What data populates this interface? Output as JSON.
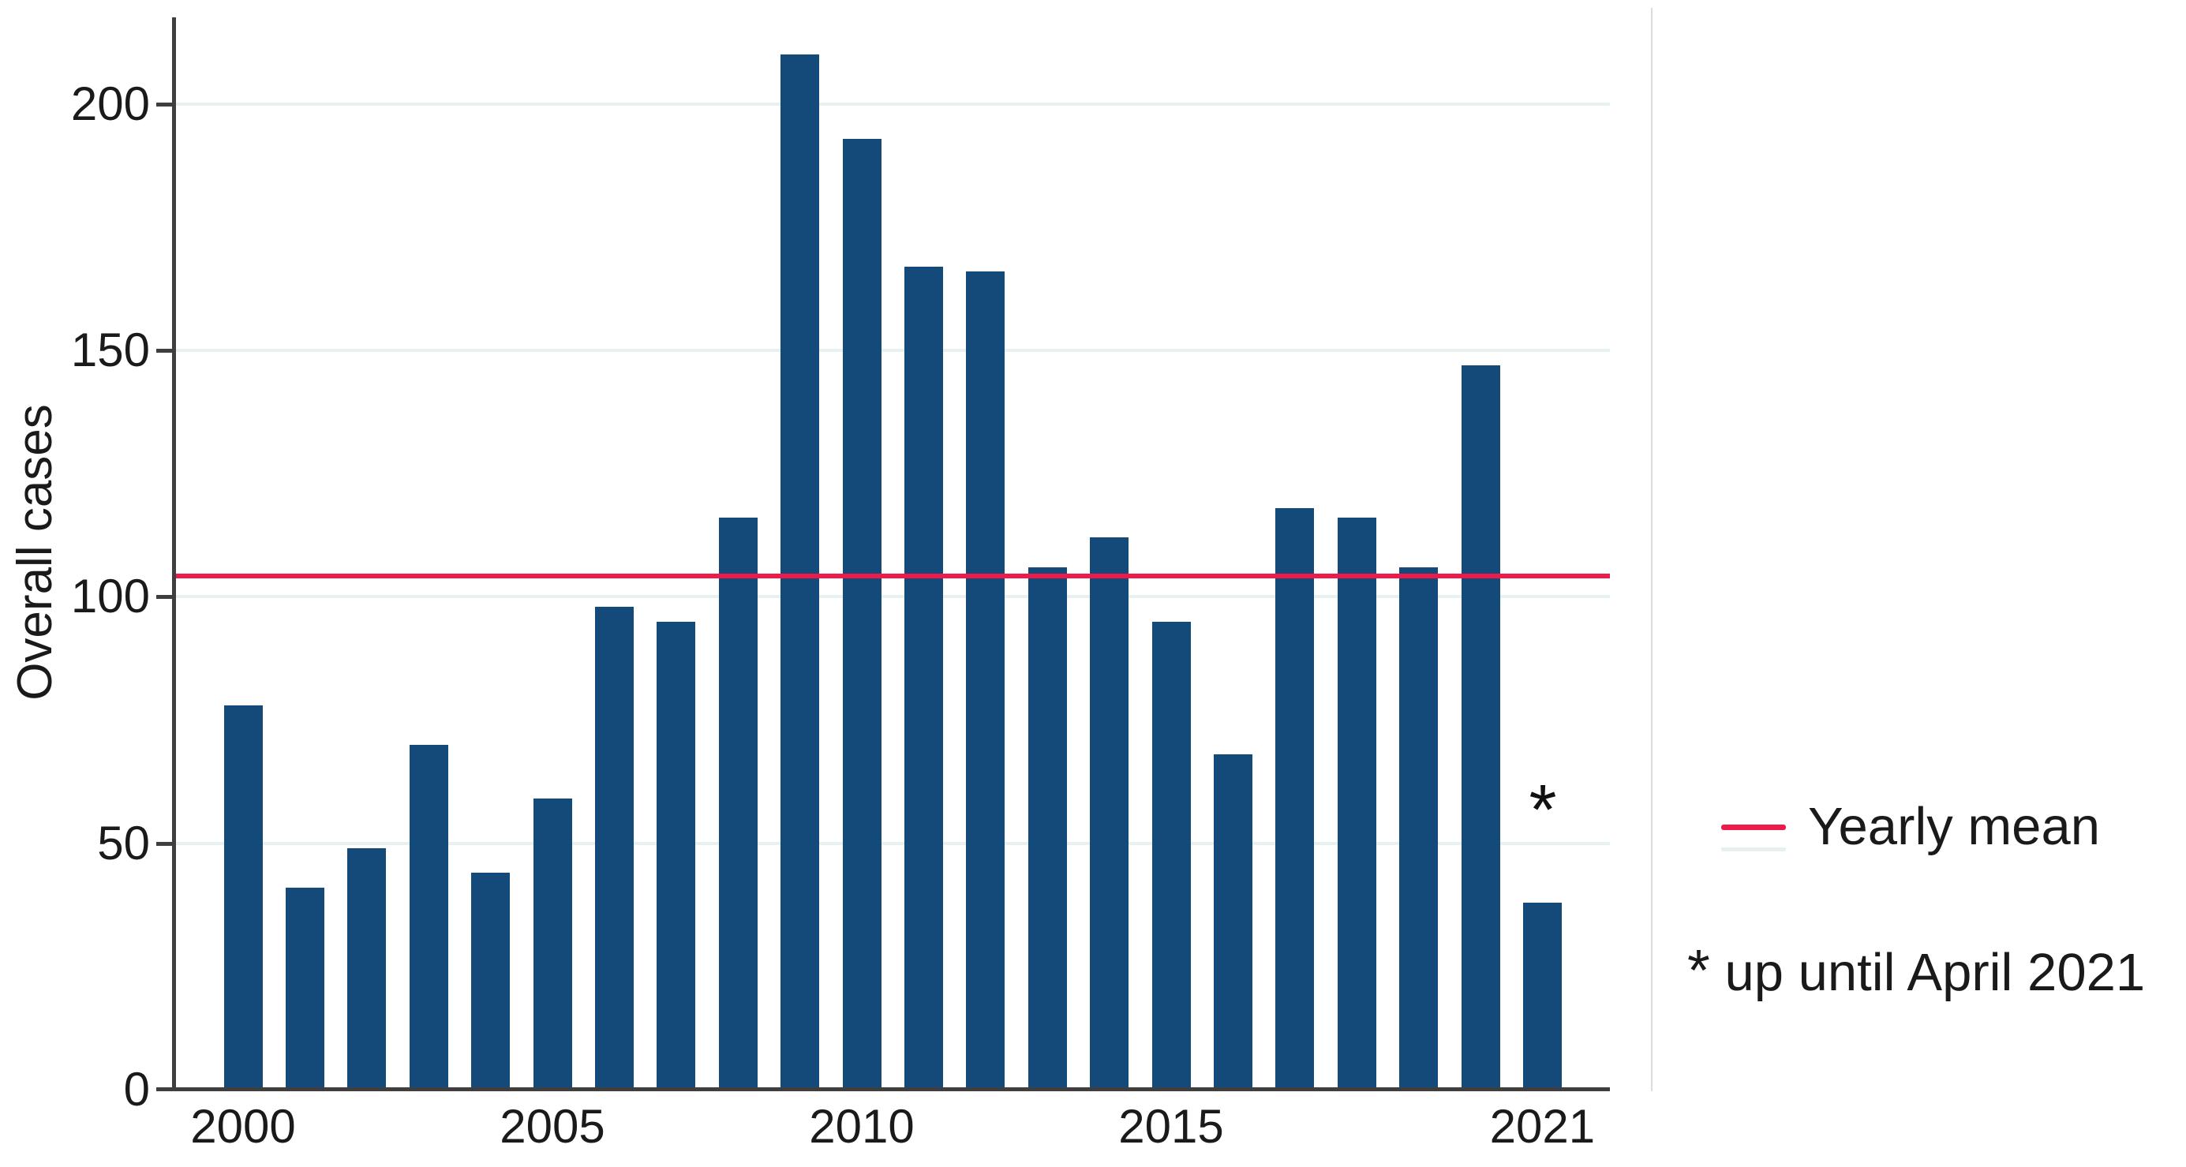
{
  "chart_data": {
    "type": "bar",
    "title": "",
    "ylabel": "Overall cases",
    "xlabel": "",
    "categories": [
      2000,
      2001,
      2002,
      2003,
      2004,
      2005,
      2006,
      2007,
      2008,
      2009,
      2010,
      2011,
      2012,
      2013,
      2014,
      2015,
      2016,
      2017,
      2018,
      2019,
      2020,
      2021
    ],
    "values": [
      78,
      41,
      49,
      70,
      44,
      59,
      98,
      95,
      116,
      210,
      193,
      167,
      166,
      106,
      112,
      95,
      68,
      118,
      116,
      106,
      147,
      38
    ],
    "ylim": [
      0,
      217
    ],
    "y_ticks": [
      0,
      50,
      100,
      150,
      200
    ],
    "y_tick_labels": [
      "0",
      "50",
      "100",
      "150",
      "200"
    ],
    "x_tick_years": [
      2000,
      2005,
      2010,
      2015,
      2021
    ],
    "x_tick_labels": [
      "2000",
      "2005",
      "2010",
      "2015",
      "2021"
    ],
    "grid": "horizontal",
    "legend_position": "right-middle",
    "bar_color": "#144a7a",
    "mean_line": {
      "label": "Yearly mean",
      "value": 104.2,
      "color": "#ee1b4a"
    },
    "annotation": {
      "symbol": "*",
      "text": "up until April 2021",
      "applies_to_year": "2021"
    }
  },
  "colors": {
    "bar": "#144a7a",
    "mean_line": "#ee1b4a",
    "gridline": "#e7f2f0",
    "axis": "#3f3f3f",
    "right_frame": "#dcdcdc",
    "text": "#1a1a1a",
    "background": "#ffffff"
  }
}
